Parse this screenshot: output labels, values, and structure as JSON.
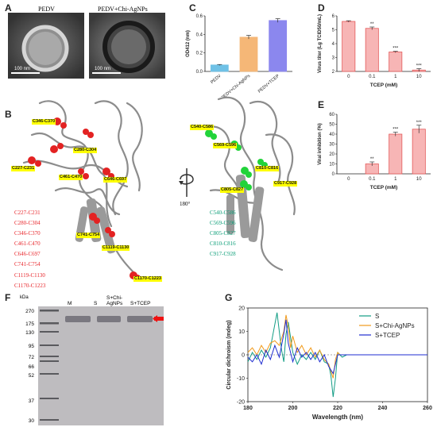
{
  "panels": {
    "a": "A",
    "b": "B",
    "c": "C",
    "d": "D",
    "e": "E",
    "f": "F",
    "g": "G"
  },
  "panel_a": {
    "img1_label": "PEDV",
    "img2_label": "PEDV+Chi-AgNPs",
    "scale1": "100 nm",
    "scale2": "100 nm"
  },
  "panel_b": {
    "rotation": "180°",
    "left_tags": [
      "C346-C370",
      "C280-C304",
      "C227-C231",
      "C461-C470",
      "C646-C697",
      "C741-C754",
      "C1119-C1130",
      "C1170-C1223"
    ],
    "left_list": [
      "C227-C231",
      "C280-C304",
      "C346-C370",
      "C461-C470",
      "C646-C697",
      "C741-C754",
      "C1119-C1130",
      "C1170-C1223"
    ],
    "right_tags": [
      "C540-C586",
      "C569-C596",
      "C810-C816",
      "C805-C827",
      "C917-C928"
    ],
    "right_list": [
      "C540-C586",
      "C569-C596",
      "C805-C827",
      "C810-C816",
      "C917-C928"
    ],
    "red_color": "#e8262b",
    "green_color": "#0e9f79"
  },
  "panel_f": {
    "kda": "kDa",
    "ladder": [
      "270",
      "175",
      "130",
      "95",
      "72",
      "66",
      "52",
      "37",
      "30"
    ],
    "lanes": [
      "M",
      "S",
      "S+Chi-\nAgNPs",
      "S+TCEP"
    ]
  },
  "chart_data": [
    {
      "id": "C",
      "type": "bar",
      "categories": [
        "PEDV",
        "PEDV+Chi-AgNPs",
        "PEDV+TCEP"
      ],
      "values": [
        0.07,
        0.37,
        0.55
      ],
      "errors": [
        0.005,
        0.02,
        0.02
      ],
      "colors": [
        "#6fc1e6",
        "#f5b777",
        "#8b87ee"
      ],
      "ylabel": "OD412 (nm)",
      "ylim": [
        0,
        0.6
      ],
      "yticks": [
        "0.0",
        "0.2",
        "0.4",
        "0.6"
      ]
    },
    {
      "id": "D",
      "type": "bar",
      "categories": [
        "0",
        "0.1",
        "1",
        "10"
      ],
      "values": [
        5.6,
        5.1,
        3.4,
        2.1
      ],
      "errors": [
        0.05,
        0.1,
        0.05,
        0.1
      ],
      "significance": [
        "",
        "**",
        "***",
        "***"
      ],
      "color": "#f7b5b5",
      "edge": "#e45a5a",
      "xlabel": "TCEP (mM)",
      "ylabel": "Virus titer (Lg TCID50/mL)",
      "ylim": [
        2,
        6
      ],
      "yticks": [
        "2",
        "3",
        "4",
        "5",
        "6"
      ]
    },
    {
      "id": "E",
      "type": "bar",
      "categories": [
        "0",
        "0.1",
        "1",
        "10"
      ],
      "values": [
        0,
        10,
        40,
        45
      ],
      "errors": [
        0,
        2,
        2,
        4
      ],
      "significance": [
        "",
        "**",
        "***",
        "***"
      ],
      "color": "#f7b5b5",
      "edge": "#e45a5a",
      "xlabel": "TCEP (mM)",
      "ylabel": "Viral inhibition (%)",
      "ylim": [
        0,
        60
      ],
      "yticks": [
        "0",
        "10",
        "20",
        "30",
        "40",
        "50",
        "60"
      ]
    },
    {
      "id": "G",
      "type": "line",
      "xlabel": "Wavelength (nm)",
      "ylabel": "Circular dichroism (mdeg)",
      "xlim": [
        180,
        260
      ],
      "ylim": [
        -20,
        20
      ],
      "xticks": [
        "180",
        "200",
        "220",
        "240",
        "260"
      ],
      "yticks": [
        "-20",
        "-10",
        "0",
        "10",
        "20"
      ],
      "legend": "top-right",
      "series": [
        {
          "name": "S",
          "color": "#119c84",
          "x": [
            180,
            182,
            184,
            186,
            188,
            190,
            192,
            193,
            194,
            195,
            196,
            197,
            198,
            200,
            202,
            204,
            206,
            208,
            210,
            212,
            214,
            216,
            217,
            218,
            219,
            220,
            221,
            222,
            224,
            226,
            230,
            240,
            250,
            260
          ],
          "y": [
            -3,
            1,
            -2,
            2,
            -1,
            3,
            13,
            18,
            10,
            2,
            -3,
            9,
            14,
            1,
            -4,
            0,
            -2,
            1,
            -2,
            2,
            -3,
            -4,
            -9,
            -18,
            -10,
            1,
            0,
            -1,
            0,
            0,
            0,
            0,
            0,
            0
          ]
        },
        {
          "name": "S+Chi-AgNPs",
          "color": "#f19a1a",
          "x": [
            180,
            182,
            184,
            186,
            188,
            190,
            192,
            194,
            196,
            197,
            198,
            199,
            200,
            202,
            204,
            206,
            208,
            210,
            212,
            214,
            216,
            218,
            219,
            220,
            221,
            222,
            224,
            226,
            230,
            240,
            250,
            260
          ],
          "y": [
            1,
            3,
            0,
            4,
            1,
            5,
            6,
            4,
            10,
            17,
            12,
            3,
            8,
            1,
            4,
            0,
            3,
            -1,
            2,
            -2,
            -4,
            -10,
            -2,
            1,
            0,
            0,
            0,
            0,
            0,
            0,
            0,
            0
          ]
        },
        {
          "name": "S+TCEP",
          "color": "#1f2dd0",
          "x": [
            180,
            182,
            184,
            186,
            188,
            190,
            192,
            194,
            196,
            197,
            198,
            200,
            202,
            204,
            206,
            208,
            210,
            212,
            214,
            216,
            218,
            219,
            220,
            222,
            224,
            226,
            230,
            240,
            250,
            260
          ],
          "y": [
            -1,
            -3,
            0,
            -4,
            2,
            -2,
            4,
            -1,
            9,
            15,
            5,
            -3,
            3,
            -1,
            1,
            -2,
            1,
            -3,
            0,
            -5,
            -8,
            -4,
            0,
            0,
            0,
            0,
            0,
            0,
            0,
            0
          ]
        }
      ]
    }
  ]
}
